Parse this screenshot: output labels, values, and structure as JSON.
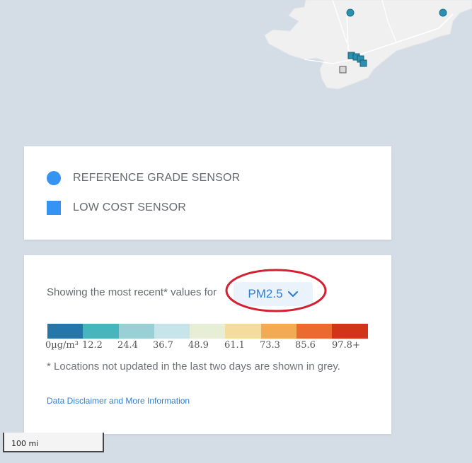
{
  "legend": {
    "reference_label": "REFERENCE GRADE SENSOR",
    "low_cost_label": "LOW COST SENSOR",
    "sensor_color": "#3593f2"
  },
  "values_panel": {
    "showing_text": "Showing the most recent* values for",
    "pollutant": "PM2.5",
    "dropdown_icon": "chevron-down-icon",
    "scale_colors": [
      "#2676a9",
      "#46b5bc",
      "#98d0d6",
      "#c6e4ea",
      "#e6eed6",
      "#f3dc9c",
      "#f3ab53",
      "#eb6a2f",
      "#d13419"
    ],
    "tick_labels": [
      "0µg/m³",
      "12.2",
      "24.4",
      "36.7",
      "48.9",
      "61.1",
      "73.3",
      "85.6",
      "97.8+"
    ],
    "note": "* Locations not updated in the last two days are shown in grey.",
    "disclaimer_link": "Data Disclaimer and More Information",
    "highlight_color": "#d42030"
  },
  "map": {
    "scale_label": "100 mi"
  }
}
